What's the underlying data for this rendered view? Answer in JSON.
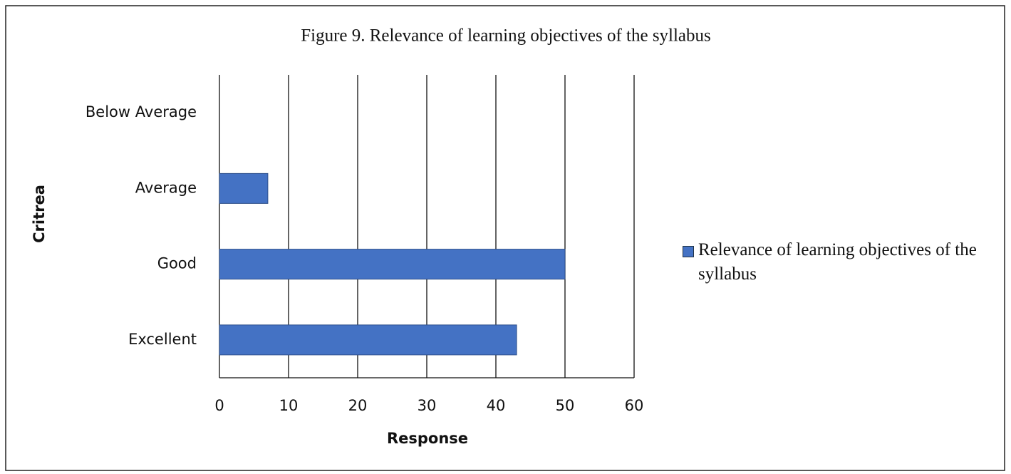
{
  "chart_data": {
    "type": "bar",
    "orientation": "horizontal",
    "title": "Figure 9. Relevance of learning objectives of the syllabus",
    "categories": [
      "Excellent",
      "Good",
      "Average",
      "Below Average"
    ],
    "series": [
      {
        "name": "Relevance of learning objectives of the syllabus",
        "color": "#4472c4",
        "values": [
          43,
          50,
          7,
          0
        ]
      }
    ],
    "xlabel": "Response",
    "ylabel": "Critrea",
    "xlim": [
      0,
      60
    ],
    "xticks": [
      0,
      10,
      20,
      30,
      40,
      50,
      60
    ],
    "grid": true,
    "legend": "right"
  }
}
